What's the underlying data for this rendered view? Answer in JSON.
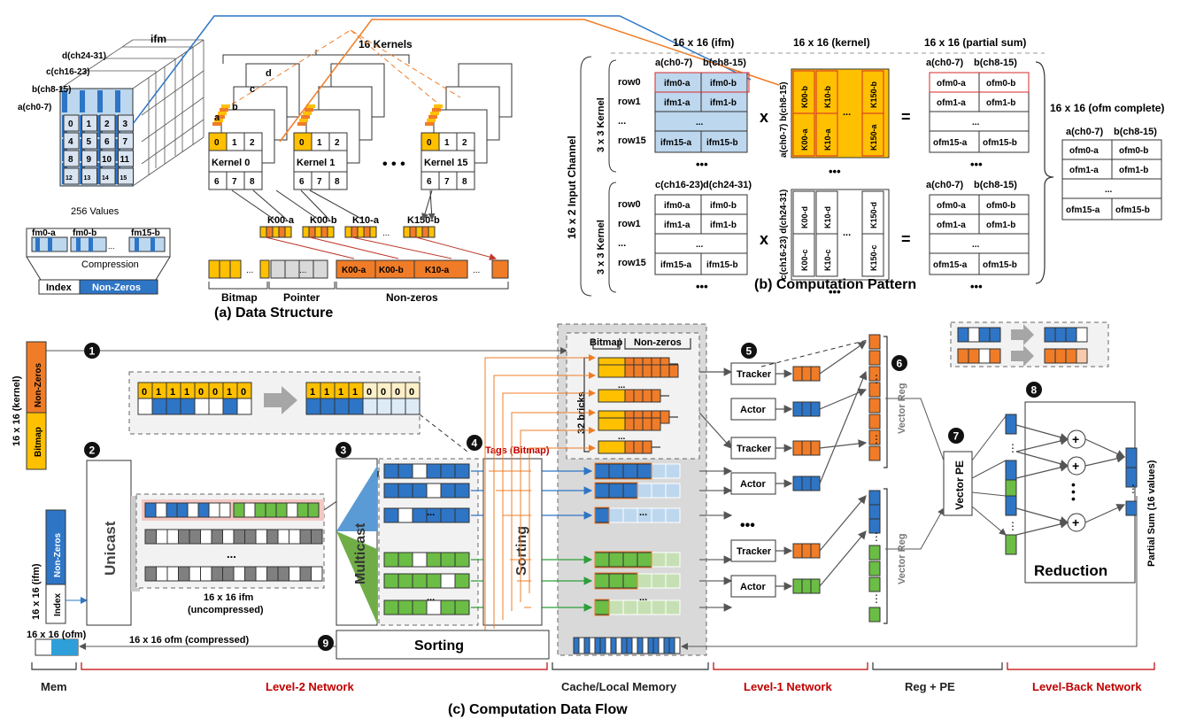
{
  "colors": {
    "blue": "#2e75c6",
    "lightblue": "#bdd7ee",
    "orange": "#f07c27",
    "yellow": "#ffc000",
    "green": "#6bbd45",
    "gray": "#808080",
    "darkred": "#c00000",
    "cache_bg": "#d9d9d9"
  },
  "a": {
    "caption": "(a) Data Structure",
    "ifm_label": "ifm",
    "ch_labels": [
      "d(ch24-31)",
      "c(ch16-23)",
      "b(ch8-15)",
      "a(ch0-7)"
    ],
    "front_grid": [
      "0",
      "1",
      "2",
      "3",
      "4",
      "5",
      "6",
      "7",
      "8",
      "9",
      "10",
      "11",
      "12",
      "13",
      "14",
      "15"
    ],
    "values_label": "256 Values",
    "fm_labels": [
      "fm0-a",
      "fm0-b",
      "fm15-b"
    ],
    "compression": "Compression",
    "index": "Index",
    "nonzeros": "Non-Zeros",
    "kernels_title": "16 Kernels",
    "kernel_names": [
      "Kernel 0",
      "Kernel 1",
      "Kernel 15"
    ],
    "kernel_letters": [
      "d",
      "c",
      "b",
      "a"
    ],
    "kernel_cells": [
      "0",
      "1",
      "2",
      "6",
      "7",
      "8"
    ],
    "dots": "• • •",
    "k_labels": [
      "K00-a",
      "K00-b",
      "K10-a",
      "K150-b"
    ],
    "row_labels": [
      "K00-a",
      "K00-b",
      "K10-a"
    ],
    "bottom_labels": [
      "Bitmap",
      "Pointer",
      "Non-zeros"
    ]
  },
  "b": {
    "caption": "(b) Computation Pattern",
    "h_ifm": "16 x 16 (ifm)",
    "h_kernel": "16 x 16 (kernel)",
    "h_psum": "16 x 16 (partial sum)",
    "h_ofm": "16 x 16 (ofm complete)",
    "input_channel": "16 x 2 Input Channel",
    "kernel3x3": "3 x 3 Kernel",
    "cols_ab": [
      "a(ch0-7)",
      "b(ch8-15)"
    ],
    "cols_cd": [
      "c(ch16-23)",
      "d(ch24-31)"
    ],
    "rows": [
      "row0",
      "row1",
      "...",
      "row15"
    ],
    "ifm_top": [
      "ifm0-a",
      "ifm0-b",
      "ifm1-a",
      "ifm1-b",
      "ifm15-a",
      "ifm15-b"
    ],
    "ofm_cells": [
      "ofm0-a",
      "ofm0-b",
      "ofm1-a",
      "ofm1-b",
      "ofm15-a",
      "ofm15-b"
    ],
    "k_top": [
      "K00-b",
      "K10-b",
      "K150-b",
      "K00-a",
      "K10-a",
      "K150-a"
    ],
    "k_bot": [
      "K00-d",
      "K10-d",
      "K150-d",
      "K00-c",
      "K10-c",
      "K150-c"
    ],
    "kernel_side_top": "a(ch0-7) b(ch8-15)",
    "kernel_side_bot": "c(ch16-23) d(ch24-31)",
    "times": "x",
    "equals": "=",
    "ellipsis": "...",
    "dots": "•••"
  },
  "c": {
    "caption": "(c) Computation Data Flow",
    "kernel_box": "16 x 16 (kernel)",
    "nonzeros": "Non-Zeros",
    "bitmap": "Bitmap",
    "ifm_box": "16 x 16 (ifm)",
    "index": "Index",
    "unicast": "Unicast",
    "multicast": "Multicast",
    "sorting": "Sorting",
    "bitmap_seq": [
      "0",
      "1",
      "1",
      "1",
      "0",
      "0",
      "1",
      "0"
    ],
    "bitmap_sorted": [
      "1",
      "1",
      "1",
      "1",
      "0",
      "0",
      "0",
      "0"
    ],
    "ifm_uncompressed": "16 x 16 ifm",
    "uncompressed": "(uncompressed)",
    "tags": "Tags (Bitmap)",
    "bricks": "32 bricks",
    "bitmap_head": "Bitmap",
    "nonzeros_head": "Non-zeros",
    "tracker": "Tracker",
    "actor": "Actor",
    "vector_reg": "Vector Reg",
    "vector_pe": "Vector PE",
    "reduction": "Reduction",
    "partial_sum": "Partial Sum (16 values)",
    "ofm_box": "16 x 16 (ofm)",
    "ofm_compressed": "16 x 16 ofm (compressed)",
    "steps": [
      "1",
      "2",
      "3",
      "4",
      "5",
      "6",
      "7",
      "8",
      "9"
    ],
    "sections": [
      "Mem",
      "Level-2 Network",
      "Cache/Local Memory",
      "Level-1 Network",
      "Reg + PE",
      "Level-Back Network"
    ],
    "dots": "•••",
    "ellipsis": "..."
  }
}
